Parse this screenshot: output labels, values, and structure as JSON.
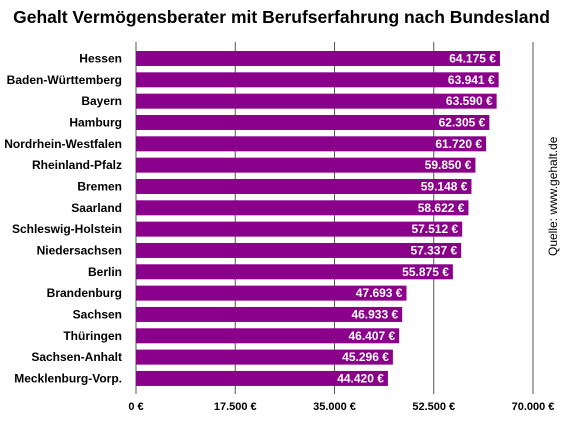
{
  "colors": {
    "bar": "#8B008B",
    "gridline": "#555555",
    "text": "#000000",
    "label_text": "#ffffff"
  },
  "chart_data": {
    "type": "bar",
    "orientation": "horizontal",
    "title": "Gehalt Vermögensberater mit Berufserfahrung nach Bundesland",
    "source": "Quelle: www.gehalt.de",
    "categories": [
      "Hessen",
      "Baden-Württemberg",
      "Bayern",
      "Hamburg",
      "Nordrhein-Westfalen",
      "Rheinland-Pfalz",
      "Bremen",
      "Saarland",
      "Schleswig-Holstein",
      "Niedersachsen",
      "Berlin",
      "Brandenburg",
      "Sachsen",
      "Thüringen",
      "Sachsen-Anhalt",
      "Mecklenburg-Vorp."
    ],
    "values": [
      64175,
      63941,
      63590,
      62305,
      61720,
      59850,
      59148,
      58622,
      57512,
      57337,
      55875,
      47693,
      46933,
      46407,
      45296,
      44420
    ],
    "value_labels": [
      "64.175 €",
      "63.941 €",
      "63.590 €",
      "62.305 €",
      "61.720 €",
      "59.850 €",
      "59.148 €",
      "58.622 €",
      "57.512 €",
      "57.337 €",
      "55.875 €",
      "47.693 €",
      "46.933 €",
      "46.407 €",
      "45.296 €",
      "44.420 €"
    ],
    "xlim": [
      0,
      70000
    ],
    "xticks": [
      0,
      17500,
      35000,
      52500,
      70000
    ],
    "xtick_labels": [
      "0 €",
      "17.500 €",
      "35.000 €",
      "52.500 €",
      "70.000 €"
    ],
    "grid": true
  }
}
